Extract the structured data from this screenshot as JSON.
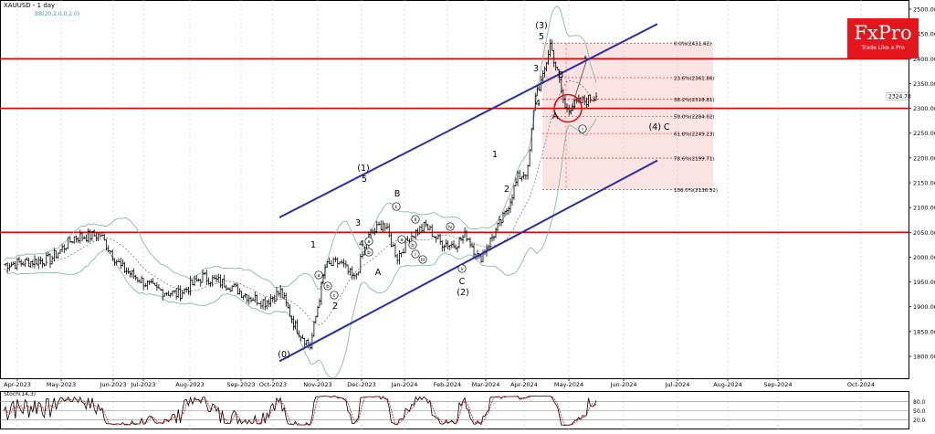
{
  "header": {
    "title": "XAUUSD - 1 day",
    "indicator": "BB(20,2.0,0,2.0)"
  },
  "logo": {
    "brand": "FxPro",
    "tagline": "Trade Like a Pro"
  },
  "oscillator_label": "Stoch(14,3)",
  "colors": {
    "channel": "#2b2ba6",
    "levels": "#e00000",
    "fib": "#e00000",
    "bollinger": "#8ab8a8",
    "up": "#1aa01a",
    "down": "#c81818"
  },
  "chart_data": {
    "type": "line",
    "title": "XAUUSD - 1 day",
    "xlabel": "",
    "ylabel": "",
    "x_ticks": [
      "Apr-2023",
      "May-2023",
      "Jun-2023",
      "Jul-2023",
      "Aug-2023",
      "Sep-2023",
      "Oct-2023",
      "Nov-2023",
      "Dec-2023",
      "Jan-2024",
      "Feb-2024",
      "Mar-2024",
      "Apr-2024",
      "May-2024",
      "Jun-2024",
      "Jul-2024",
      "Aug-2024",
      "Sep-2024",
      "Oct-2024"
    ],
    "y_ticks": [
      1800,
      1850,
      1900,
      1950,
      2000,
      2050,
      2100,
      2150,
      2200,
      2250,
      2300,
      2350,
      2400,
      2450,
      2500
    ],
    "ylim": [
      1780,
      2510
    ],
    "current_price": "2324.78",
    "series": [
      {
        "x": [
          "Apr-2023",
          "Apr-2023",
          "May-2023",
          "May-2023",
          "Jun-2023",
          "Jun-2023",
          "Jul-2023",
          "Jul-2023",
          "Aug-2023",
          "Aug-2023",
          "Sep-2023",
          "Sep-2023",
          "Oct-2023",
          "Oct-2023",
          "Oct-2023",
          "Nov-2023",
          "Nov-2023",
          "Nov-2023",
          "Dec-2023",
          "Dec-2023",
          "Dec-2023",
          "Jan-2024",
          "Jan-2024",
          "Jan-2024",
          "Feb-2024",
          "Feb-2024",
          "Feb-2024",
          "Mar-2024",
          "Mar-2024",
          "Mar-2024",
          "Apr-2024",
          "Apr-2024",
          "Apr-2024",
          "Apr-2024",
          "Apr-2024",
          "Apr-2024",
          "May-2024"
        ],
        "values": [
          1985,
          1995,
          2040,
          2045,
          1980,
          1960,
          1935,
          1925,
          1960,
          1945,
          1920,
          1910,
          1930,
          1860,
          1820,
          1980,
          1990,
          1955,
          2040,
          2070,
          2000,
          2045,
          2063,
          2030,
          2025,
          2045,
          1995,
          2040,
          2085,
          2160,
          2175,
          2330,
          2360,
          2430,
          2370,
          2300,
          2324
        ]
      }
    ],
    "horizontal_levels": [
      2050,
      2300,
      2400
    ],
    "channel": {
      "upper": [
        [
          "Oct-2023",
          2080
        ],
        [
          "Apr-2024",
          2470
        ]
      ],
      "lower": [
        [
          "Oct-2023",
          1815
        ],
        [
          "May-2024",
          2195
        ]
      ]
    },
    "fibonacci": [
      {
        "label": "0.0%(2431.42)",
        "value": 2431.42
      },
      {
        "label": "23.6%(2361.86)",
        "value": 2361.86
      },
      {
        "label": "38.2%(2318.81)",
        "value": 2318.81
      },
      {
        "label": "50.0%(2284.02)",
        "value": 2284.02
      },
      {
        "label": "61.8%(2249.23)",
        "value": 2249.23
      },
      {
        "label": "78.6%(2199.71)",
        "value": 2199.71
      },
      {
        "label": "100.0%(2136.52)",
        "value": 2136.52
      }
    ],
    "annotations": [
      "(3)",
      "5",
      "3",
      "4",
      "B",
      "A",
      "(1)",
      "5",
      "3",
      "4",
      "1",
      "2",
      "A",
      "B",
      "(2)",
      "C",
      "(0)",
      "1",
      "2",
      "2",
      "(4) C",
      "i",
      "ii",
      "iii",
      "iv",
      "v",
      "a",
      "b",
      "c",
      "a",
      "b"
    ],
    "oscillator": {
      "name": "Stoch(14,3)",
      "levels": [
        80,
        50,
        20
      ],
      "level_labels": [
        "80.0",
        "50.0",
        "20.0"
      ],
      "ylim": [
        0,
        100
      ]
    }
  }
}
